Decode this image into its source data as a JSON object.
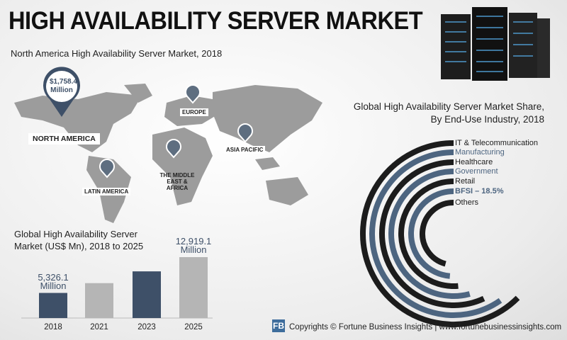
{
  "header": {
    "title": "HIGH AVAILABILITY SERVER MARKET"
  },
  "map": {
    "title": "North America High Availability Server Market, 2018",
    "callout": [
      "$1,758.4",
      "Million"
    ],
    "regions": [
      "NORTH AMERICA",
      "EUROPE",
      "ASIA PACIFIC",
      "THE MIDDLE EAST & AFRICA",
      "LATIN AMERICA"
    ]
  },
  "chart_data": [
    {
      "type": "bar",
      "title": "Global High Availability Server Market (US$ Mn), 2018 to 2025",
      "categories": [
        "2018",
        "2021",
        "2023",
        "2025"
      ],
      "values": [
        5326.1,
        7400,
        9900,
        12919.1
      ],
      "value_labels": [
        "5,326.1 Million",
        null,
        null,
        "12,919.1 Million"
      ],
      "colors": [
        "#3e5068",
        "#b5b5b5",
        "#3e5068",
        "#b5b5b5"
      ]
    },
    {
      "type": "radial",
      "title": "Global High Availability Server Market Share, By End-Use Industry, 2018",
      "series": [
        {
          "name": "IT & Telecommunication",
          "color": "#1c1c1c"
        },
        {
          "name": "Manufacturing",
          "color": "#4d6580"
        },
        {
          "name": "Healthcare",
          "color": "#1c1c1c"
        },
        {
          "name": "Government",
          "color": "#4d6580"
        },
        {
          "name": "Retail",
          "color": "#1c1c1c"
        },
        {
          "name": "BFSI – 18.5%",
          "color": "#4d6580"
        },
        {
          "name": "Others",
          "color": "#1c1c1c"
        }
      ]
    }
  ],
  "footer": {
    "text": "Copyrights © Fortune Business Insights | www.fortunebusinessinsights.com"
  }
}
